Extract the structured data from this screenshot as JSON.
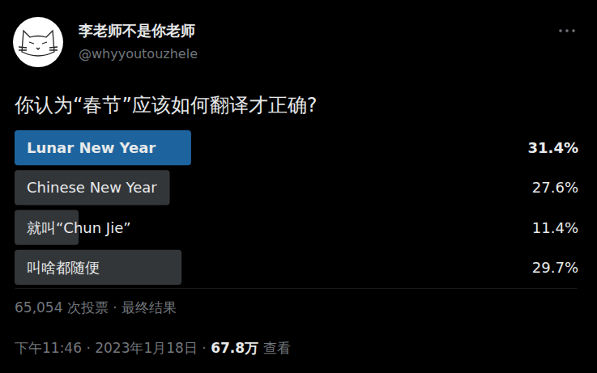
{
  "chart_data": {
    "type": "bar",
    "orientation": "horizontal",
    "title": "你认为“春节”应该如何翻译才正确?",
    "categories": [
      "Lunar New Year",
      "Chinese New Year",
      "就叫“Chun Jie”",
      "叫啥都随便"
    ],
    "values": [
      31.4,
      27.6,
      11.4,
      29.7
    ],
    "value_labels": [
      "31.4%",
      "27.6%",
      "11.4%",
      "29.7%"
    ],
    "colors": [
      "#1d649e",
      "#333639",
      "#333639",
      "#333639"
    ],
    "xlim": [
      0,
      100
    ],
    "data_labels": true
  },
  "header": {
    "display_name": "李老师不是你老师",
    "handle": "@whyyoutouzhele"
  },
  "footer": {
    "votes": "65,054 次投票",
    "status": "最终结果",
    "separator": "·",
    "time": "下午11:46",
    "date": "2023年1月18日",
    "views": "67.8万",
    "views_label": "查看"
  }
}
